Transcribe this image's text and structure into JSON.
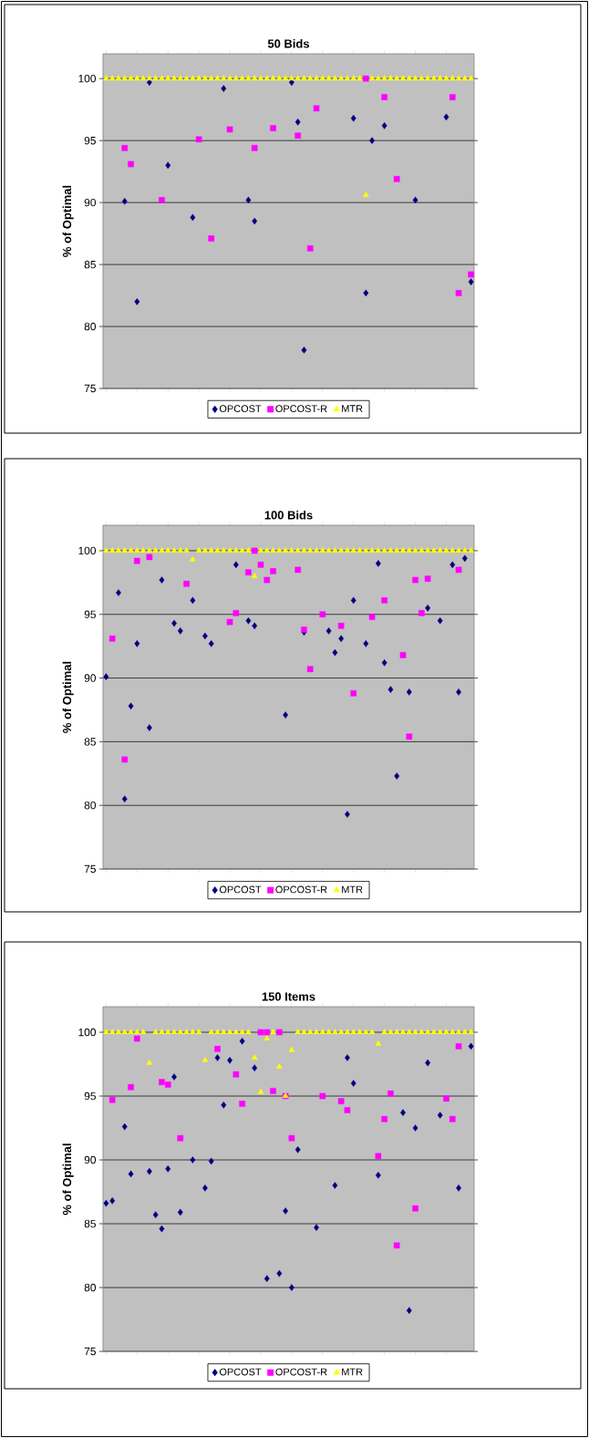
{
  "chart_data": [
    {
      "type": "scatter",
      "title": "50 Bids",
      "ylabel": "% of Optimal",
      "categories": [
        null,
        null,
        null,
        null,
        null,
        null,
        null,
        null,
        null,
        null,
        null,
        null,
        null,
        null,
        null,
        null,
        null,
        null,
        null,
        null,
        null,
        null,
        null,
        null,
        null,
        null,
        null,
        null,
        null,
        null,
        null,
        null,
        null,
        null,
        null,
        null,
        null,
        null,
        null,
        null,
        null,
        null,
        null,
        null,
        null,
        null,
        null,
        null,
        null,
        null,
        null,
        null,
        null,
        null,
        null,
        null,
        null,
        null,
        null,
        null
      ],
      "ylim": [
        75,
        102
      ],
      "yticks": [
        75,
        80,
        85,
        90,
        95,
        100
      ],
      "grid": "y",
      "legend": "bottom",
      "series": [
        {
          "name": "OPCOST",
          "color": "#000080",
          "marker": "diamond",
          "values": [
            null,
            null,
            null,
            90.1,
            null,
            82.0,
            null,
            99.7,
            null,
            null,
            93.0,
            null,
            null,
            null,
            88.8,
            null,
            null,
            null,
            null,
            99.2,
            null,
            null,
            null,
            90.2,
            88.5,
            null,
            null,
            null,
            null,
            null,
            99.7,
            96.5,
            78.1,
            null,
            null,
            null,
            null,
            null,
            null,
            null,
            96.8,
            null,
            82.7,
            95.0,
            null,
            96.2,
            null,
            null,
            null,
            null,
            90.2,
            null,
            null,
            null,
            null,
            96.9,
            null,
            null,
            null,
            83.6
          ]
        },
        {
          "name": "OPCOST-R",
          "color": "#ff00ff",
          "marker": "square",
          "values": [
            null,
            null,
            null,
            94.4,
            93.1,
            null,
            null,
            null,
            null,
            90.2,
            null,
            null,
            null,
            null,
            null,
            95.1,
            null,
            87.1,
            null,
            null,
            95.9,
            null,
            null,
            null,
            94.4,
            null,
            null,
            96.0,
            null,
            null,
            null,
            95.4,
            null,
            86.3,
            97.6,
            null,
            null,
            null,
            null,
            null,
            null,
            null,
            100,
            null,
            null,
            98.5,
            null,
            91.9,
            null,
            null,
            null,
            null,
            null,
            null,
            null,
            null,
            98.5,
            82.7,
            null,
            84.2
          ]
        },
        {
          "name": "MTR",
          "color": "#ffff00",
          "marker": "triangle",
          "values": [
            100,
            100,
            100,
            100,
            100,
            100,
            100,
            100,
            100,
            100,
            100,
            100,
            100,
            100,
            100,
            100,
            100,
            100,
            100,
            100,
            100,
            100,
            100,
            100,
            100,
            100,
            100,
            100,
            100,
            100,
            100,
            100,
            100,
            100,
            100,
            100,
            100,
            100,
            100,
            100,
            100,
            100,
            90.6,
            100,
            100,
            100,
            100,
            100,
            100,
            100,
            100,
            100,
            100,
            100,
            100,
            100,
            100,
            100,
            100,
            100
          ]
        }
      ]
    },
    {
      "type": "scatter",
      "title": "100 Bids",
      "ylabel": "% of Optimal",
      "categories": [
        null,
        null,
        null,
        null,
        null,
        null,
        null,
        null,
        null,
        null,
        null,
        null,
        null,
        null,
        null,
        null,
        null,
        null,
        null,
        null,
        null,
        null,
        null,
        null,
        null,
        null,
        null,
        null,
        null,
        null,
        null,
        null,
        null,
        null,
        null,
        null,
        null,
        null,
        null,
        null,
        null,
        null,
        null,
        null,
        null,
        null,
        null,
        null,
        null,
        null,
        null,
        null,
        null,
        null,
        null,
        null,
        null,
        null,
        null,
        null
      ],
      "ylim": [
        75,
        102
      ],
      "yticks": [
        75,
        80,
        85,
        90,
        95,
        100
      ],
      "grid": "y",
      "legend": "bottom",
      "series": [
        {
          "name": "OPCOST",
          "color": "#000080",
          "marker": "diamond",
          "values": [
            90.1,
            null,
            96.7,
            80.5,
            87.8,
            92.7,
            null,
            86.1,
            null,
            97.7,
            null,
            94.3,
            93.7,
            null,
            96.1,
            null,
            93.3,
            92.7,
            null,
            null,
            null,
            98.9,
            null,
            94.5,
            94.1,
            null,
            null,
            null,
            null,
            87.1,
            null,
            null,
            93.6,
            null,
            null,
            null,
            93.7,
            92.0,
            93.1,
            79.3,
            96.1,
            null,
            92.7,
            null,
            99.0,
            91.2,
            89.1,
            82.3,
            null,
            88.9,
            null,
            null,
            95.5,
            null,
            94.5,
            null,
            98.9,
            88.9,
            99.4,
            null
          ]
        },
        {
          "name": "OPCOST-R",
          "color": "#ff00ff",
          "marker": "square",
          "values": [
            null,
            93.1,
            null,
            83.6,
            null,
            99.2,
            null,
            99.5,
            null,
            null,
            null,
            null,
            null,
            97.4,
            null,
            null,
            null,
            null,
            null,
            null,
            94.4,
            95.1,
            null,
            98.3,
            100,
            98.9,
            97.7,
            98.4,
            null,
            null,
            null,
            98.5,
            93.8,
            90.7,
            null,
            95.0,
            null,
            null,
            94.1,
            null,
            88.8,
            null,
            null,
            94.8,
            null,
            96.1,
            null,
            null,
            91.8,
            85.4,
            97.7,
            95.1,
            97.8,
            null,
            null,
            null,
            null,
            98.5,
            null,
            null
          ]
        },
        {
          "name": "MTR",
          "color": "#ffff00",
          "marker": "triangle",
          "values": [
            100,
            100,
            100,
            100,
            100,
            100,
            100,
            100,
            100,
            100,
            100,
            100,
            100,
            100,
            99.3,
            100,
            100,
            100,
            100,
            100,
            100,
            100,
            100,
            100,
            98.0,
            100,
            100,
            100,
            100,
            100,
            100,
            100,
            100,
            100,
            100,
            100,
            100,
            100,
            100,
            100,
            100,
            100,
            100,
            100,
            100,
            100,
            100,
            100,
            100,
            100,
            100,
            100,
            100,
            100,
            100,
            100,
            100,
            100,
            100,
            100
          ]
        }
      ]
    },
    {
      "type": "scatter",
      "title": "150 Items",
      "ylabel": "% of Optimal",
      "categories": [
        null,
        null,
        null,
        null,
        null,
        null,
        null,
        null,
        null,
        null,
        null,
        null,
        null,
        null,
        null,
        null,
        null,
        null,
        null,
        null,
        null,
        null,
        null,
        null,
        null,
        null,
        null,
        null,
        null,
        null,
        null,
        null,
        null,
        null,
        null,
        null,
        null,
        null,
        null,
        null,
        null,
        null,
        null,
        null,
        null,
        null,
        null,
        null,
        null,
        null,
        null,
        null,
        null,
        null,
        null,
        null,
        null,
        null,
        null,
        null
      ],
      "ylim": [
        75,
        102
      ],
      "yticks": [
        75,
        80,
        85,
        90,
        95,
        100
      ],
      "grid": "y",
      "legend": "bottom",
      "series": [
        {
          "name": "OPCOST",
          "color": "#000080",
          "marker": "diamond",
          "values": [
            86.6,
            86.8,
            null,
            92.6,
            88.9,
            null,
            null,
            89.1,
            85.7,
            84.6,
            89.3,
            96.5,
            85.9,
            null,
            90.0,
            null,
            87.8,
            89.9,
            98.0,
            94.3,
            97.8,
            null,
            99.3,
            null,
            97.2,
            null,
            80.7,
            null,
            81.1,
            86.0,
            80.0,
            90.8,
            null,
            null,
            84.7,
            null,
            null,
            88.0,
            null,
            98.0,
            96.0,
            null,
            null,
            null,
            88.8,
            null,
            null,
            null,
            93.7,
            78.2,
            92.5,
            null,
            97.6,
            null,
            93.5,
            null,
            null,
            87.8,
            null,
            98.9
          ]
        },
        {
          "name": "OPCOST-R",
          "color": "#ff00ff",
          "marker": "square",
          "values": [
            null,
            94.7,
            null,
            null,
            95.7,
            99.5,
            null,
            null,
            null,
            96.1,
            95.9,
            null,
            91.7,
            null,
            null,
            null,
            null,
            null,
            98.7,
            null,
            null,
            96.7,
            94.4,
            null,
            null,
            100,
            100,
            95.4,
            100,
            95.0,
            91.7,
            null,
            null,
            null,
            null,
            95.0,
            null,
            null,
            94.6,
            93.9,
            null,
            null,
            null,
            null,
            90.3,
            93.2,
            95.2,
            83.3,
            null,
            null,
            86.2,
            null,
            null,
            null,
            null,
            94.8,
            93.2,
            98.9,
            null,
            null
          ]
        },
        {
          "name": "MTR",
          "color": "#ffff00",
          "marker": "triangle",
          "values": [
            100,
            100,
            100,
            100,
            100,
            100,
            100,
            97.6,
            100,
            100,
            100,
            100,
            100,
            100,
            100,
            100,
            97.8,
            100,
            100,
            100,
            100,
            100,
            100,
            100,
            98.0,
            95.3,
            99.5,
            100,
            97.3,
            95.0,
            98.6,
            100,
            100,
            100,
            100,
            100,
            100,
            100,
            100,
            100,
            100,
            100,
            100,
            100,
            99.1,
            100,
            100,
            100,
            100,
            100,
            100,
            100,
            100,
            100,
            100,
            100,
            100,
            100,
            100,
            100
          ]
        }
      ]
    }
  ]
}
